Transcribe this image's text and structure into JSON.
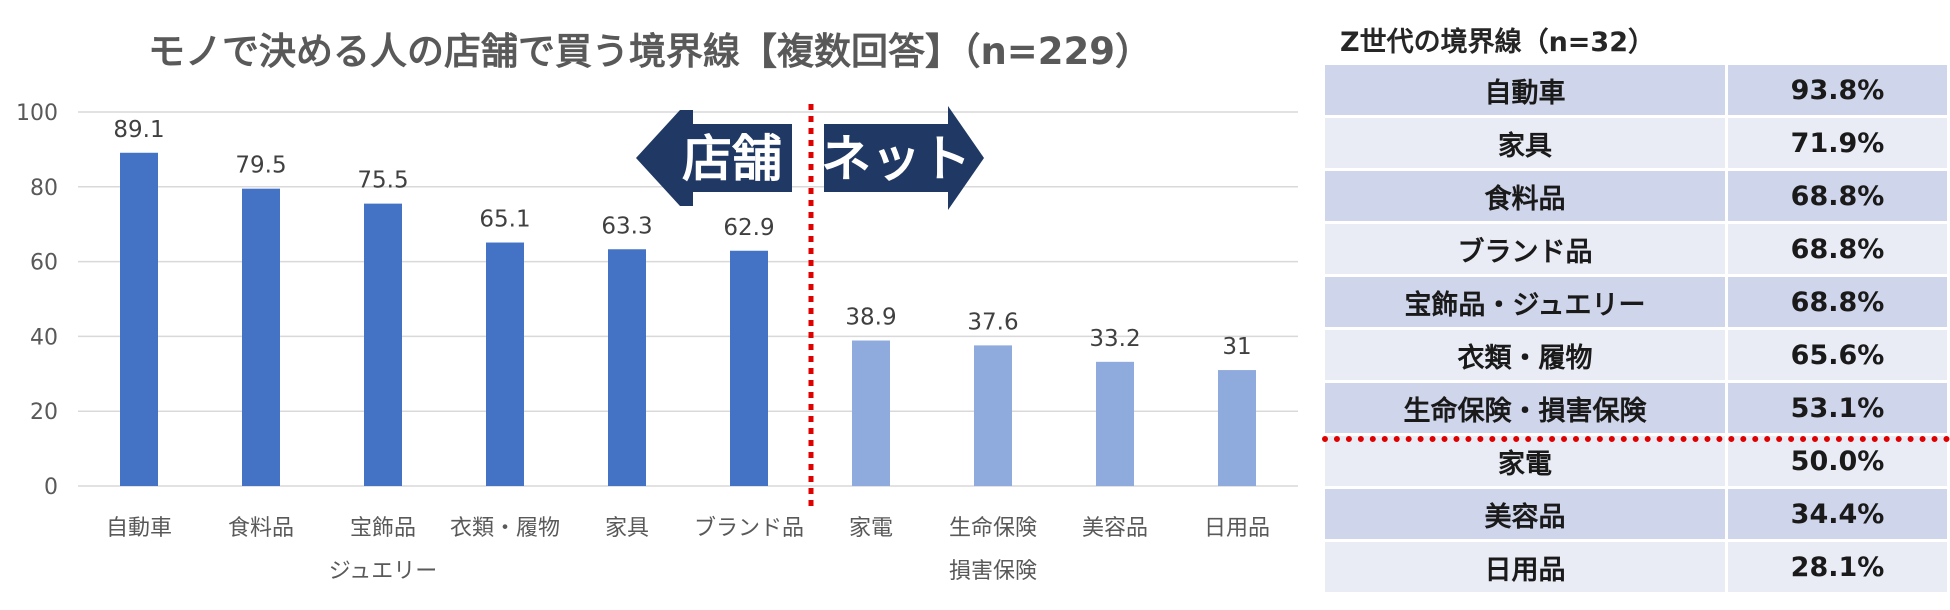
{
  "chart_data": {
    "type": "bar",
    "title": "モノで決める人の店舗で買う境界線【複数回答】（n=229）",
    "categories": [
      [
        "自動車"
      ],
      [
        "食料品"
      ],
      [
        "宝飾品",
        "ジュエリー"
      ],
      [
        "衣類・履物"
      ],
      [
        "家具"
      ],
      [
        "ブランド品"
      ],
      [
        "家電"
      ],
      [
        "生命保険",
        "損害保険"
      ],
      [
        "美容品"
      ],
      [
        "日用品"
      ]
    ],
    "values": [
      89.1,
      79.5,
      75.5,
      65.1,
      63.3,
      62.9,
      38.9,
      37.6,
      33.2,
      31
    ],
    "value_labels": [
      "89.1",
      "79.5",
      "75.5",
      "65.1",
      "63.3",
      "62.9",
      "38.9",
      "37.6",
      "33.2",
      "31"
    ],
    "groups": [
      "store",
      "store",
      "store",
      "store",
      "store",
      "store",
      "net",
      "net",
      "net",
      "net"
    ],
    "colors": {
      "store": "#4472c4",
      "net": "#8faadc",
      "arrow": "#1f3864",
      "divider": "#e00000",
      "grid": "#d9d9d9"
    },
    "ylim": [
      0,
      100
    ],
    "yticks": [
      0,
      20,
      40,
      60,
      80,
      100
    ],
    "grid": true,
    "annotations": {
      "store_arrow": "店舗",
      "net_arrow": "ネット"
    }
  },
  "table": {
    "title": "Z世代の境界線（n=32）",
    "rows": [
      {
        "item": "自動車",
        "value": "93.8%"
      },
      {
        "item": "家具",
        "value": "71.9%"
      },
      {
        "item": "食料品",
        "value": "68.8%"
      },
      {
        "item": "ブランド品",
        "value": "68.8%"
      },
      {
        "item": "宝飾品・ジュエリー",
        "value": "68.8%"
      },
      {
        "item": "衣類・履物",
        "value": "65.6%"
      },
      {
        "item": "生命保険・損害保険",
        "value": "53.1%"
      },
      {
        "item": "家電",
        "value": "50.0%"
      },
      {
        "item": "美容品",
        "value": "34.4%"
      },
      {
        "item": "日用品",
        "value": "28.1%"
      }
    ],
    "divider_after": 7,
    "divider_color": "#e00000"
  }
}
